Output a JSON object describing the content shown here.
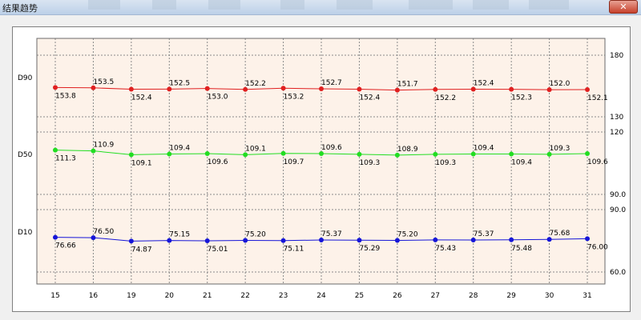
{
  "window": {
    "title": "结果趋势",
    "close_label": "✕"
  },
  "chart_data": {
    "type": "line",
    "categories": [
      "15",
      "16",
      "19",
      "20",
      "21",
      "22",
      "23",
      "24",
      "25",
      "26",
      "27",
      "28",
      "29",
      "30",
      "31"
    ],
    "series": [
      {
        "name": "D90",
        "color": "#e02020",
        "values": [
          153.8,
          153.5,
          152.4,
          152.5,
          153.0,
          152.2,
          153.2,
          152.7,
          152.4,
          151.7,
          152.2,
          152.4,
          152.3,
          152.0,
          152.1
        ],
        "labels": [
          "153.8",
          "153.5",
          "152.4",
          "152.5",
          "153.0",
          "152.2",
          "153.2",
          "152.7",
          "152.4",
          "151.7",
          "152.2",
          "152.4",
          "152.3",
          "152.0",
          "152.1"
        ],
        "ylim": [
          130,
          180
        ],
        "ticks": [
          "130",
          "180"
        ]
      },
      {
        "name": "D50",
        "color": "#22dd22",
        "values": [
          111.3,
          110.9,
          109.1,
          109.4,
          109.6,
          109.1,
          109.7,
          109.6,
          109.3,
          108.9,
          109.3,
          109.4,
          109.4,
          109.3,
          109.6
        ],
        "labels": [
          "111.3",
          "110.9",
          "109.1",
          "109.4",
          "109.6",
          "109.1",
          "109.7",
          "109.6",
          "109.3",
          "108.9",
          "109.3",
          "109.4",
          "109.4",
          "109.3",
          "109.6"
        ],
        "ylim": [
          90.0,
          120
        ],
        "ticks": [
          "90.0",
          "120"
        ]
      },
      {
        "name": "D10",
        "color": "#1515d8",
        "values": [
          76.66,
          76.5,
          74.87,
          75.15,
          75.01,
          75.2,
          75.11,
          75.37,
          75.29,
          75.2,
          75.43,
          75.37,
          75.48,
          75.68,
          76.0
        ],
        "labels": [
          "76.66",
          "76.50",
          "74.87",
          "75.15",
          "75.01",
          "75.20",
          "75.11",
          "75.37",
          "75.29",
          "75.20",
          "75.43",
          "75.37",
          "75.48",
          "75.68",
          "76.00"
        ],
        "ylim": [
          60.0,
          90.0
        ],
        "ticks": [
          "60.0",
          "90.0"
        ]
      }
    ],
    "grid": true,
    "plot_background": "#fdf2e9"
  }
}
